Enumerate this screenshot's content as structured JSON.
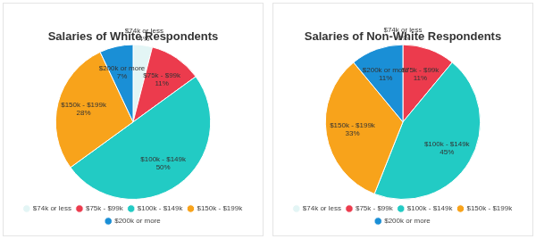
{
  "chart_data": [
    {
      "type": "pie",
      "title": "Salaries of White Respondents",
      "categories": [
        "$74k or less",
        "$75k - $99k",
        "$100k - $149k",
        "$150k - $199k",
        "$200k or more"
      ],
      "values": [
        4,
        11,
        50,
        28,
        7
      ],
      "value_labels": [
        "4%",
        "11%",
        "50%",
        "28%",
        "7%"
      ],
      "colors": [
        "#e3f5f5",
        "#ec3b4d",
        "#22cbc4",
        "#f8a31b",
        "#1a8fd6"
      ],
      "data_labels": true,
      "legend": "bottom"
    },
    {
      "type": "pie",
      "title": "Salaries of Non-White Respondents",
      "categories": [
        "$74k or less",
        "$75k - $99k",
        "$100k - $149k",
        "$150k - $199k",
        "$200k or more"
      ],
      "values": [
        0,
        11,
        45,
        33,
        11
      ],
      "value_labels": [
        "0%",
        "11%",
        "45%",
        "33%",
        "11%"
      ],
      "colors": [
        "#e3f5f5",
        "#ec3b4d",
        "#22cbc4",
        "#f8a31b",
        "#1a8fd6"
      ],
      "data_labels": true,
      "legend": "bottom"
    }
  ]
}
